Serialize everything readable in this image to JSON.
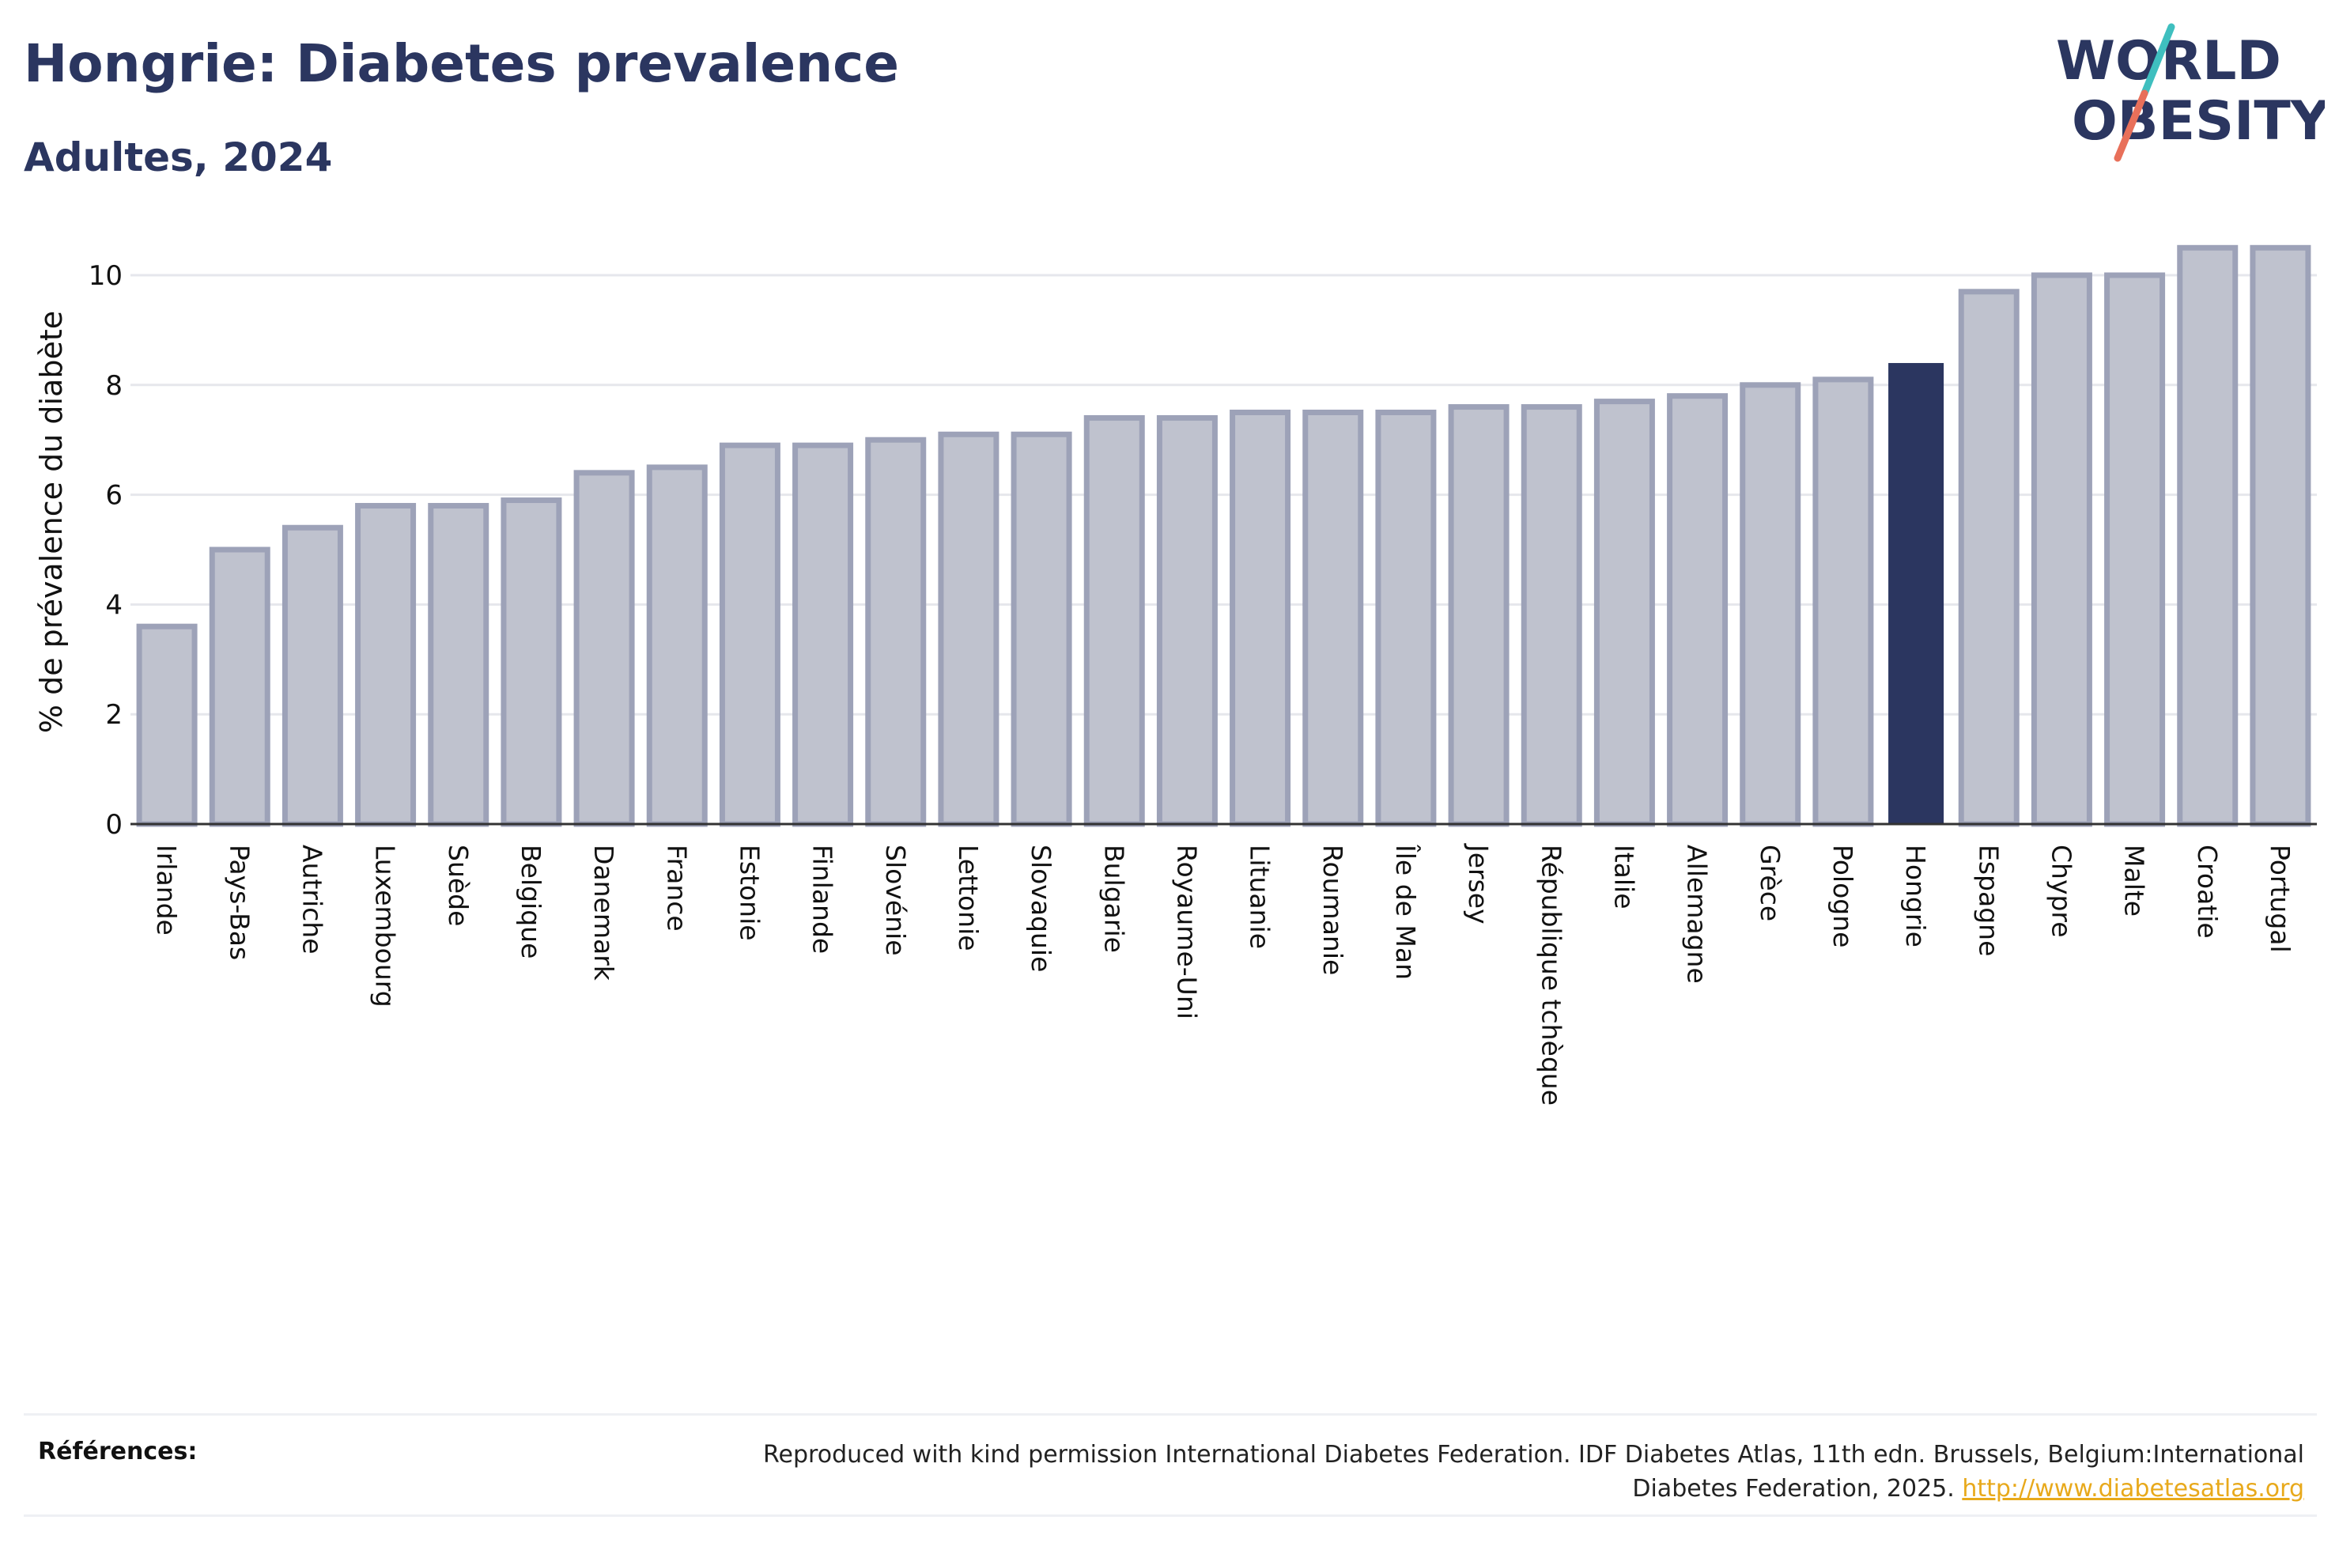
{
  "header": {
    "title": "Hongrie: Diabetes prevalence",
    "subtitle": "Adultes, 2024"
  },
  "logo": {
    "line1": "WORLD",
    "line2": "OBESITY",
    "colors": {
      "text": "#2b3660",
      "slash_teal": "#3fbfbf",
      "slash_coral": "#e8705a"
    }
  },
  "chart_data": {
    "type": "bar",
    "title": "Hongrie: Diabetes prevalence",
    "subtitle": "Adultes, 2024",
    "ylabel": "% de prévalence du diabète",
    "xlabel": "",
    "ylim": [
      0,
      11
    ],
    "yticks": [
      0,
      2,
      4,
      6,
      8,
      10
    ],
    "grid": true,
    "highlight": "Hongrie",
    "colors": {
      "bar": "#bfc2ce",
      "bar_border": "#9da2b8",
      "highlight": "#2b3660",
      "grid": "#e6e7ec"
    },
    "categories": [
      "Irlande",
      "Pays-Bas",
      "Autriche",
      "Luxembourg",
      "Suède",
      "Belgique",
      "Danemark",
      "France",
      "Estonie",
      "Finlande",
      "Slovénie",
      "Lettonie",
      "Slovaquie",
      "Bulgarie",
      "Royaume-Uni",
      "Lituanie",
      "Roumanie",
      "Île de Man",
      "Jersey",
      "République tchèque",
      "Italie",
      "Allemagne",
      "Grèce",
      "Pologne",
      "Hongrie",
      "Espagne",
      "Chypre",
      "Malte",
      "Croatie",
      "Portugal"
    ],
    "values": [
      3.6,
      5.0,
      5.4,
      5.8,
      5.8,
      5.9,
      6.4,
      6.5,
      6.9,
      6.9,
      7.0,
      7.1,
      7.1,
      7.4,
      7.4,
      7.5,
      7.5,
      7.5,
      7.6,
      7.6,
      7.7,
      7.8,
      8.0,
      8.1,
      8.4,
      9.7,
      10.0,
      10.0,
      10.5,
      10.5
    ]
  },
  "footer": {
    "label": "Références:",
    "text": "Reproduced with kind permission International Diabetes Federation. IDF Diabetes Atlas, 11th edn. Brussels, Belgium:International Diabetes Federation, 2025.",
    "link": "http://www.diabetesatlas.org"
  }
}
